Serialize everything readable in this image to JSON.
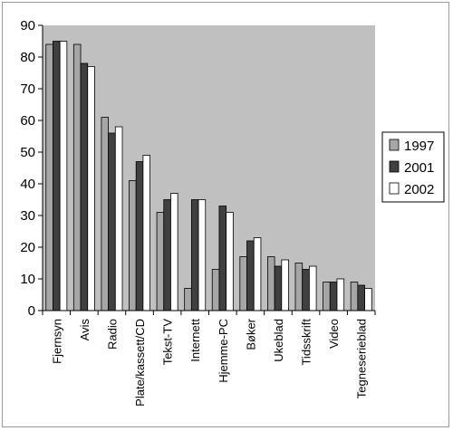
{
  "chart_data": {
    "type": "bar",
    "title": "",
    "xlabel": "",
    "ylabel": "",
    "ylim": [
      0,
      90
    ],
    "yticks": [
      0,
      10,
      20,
      30,
      40,
      50,
      60,
      70,
      80,
      90
    ],
    "grid": false,
    "legend_position": "right",
    "plot_background": "#c0c0c0",
    "categories": [
      "Fjernsyn",
      "Avis",
      "Radio",
      "Plate/kassett/CD",
      "Tekst-TV",
      "Internett",
      "Hjemme-PC",
      "Bøker",
      "Ukeblad",
      "Tidsskrift",
      "Video",
      "Tegneserieblad"
    ],
    "series": [
      {
        "name": "1997",
        "color": "#a6a6a6",
        "values": [
          84,
          84,
          61,
          41,
          31,
          7,
          13,
          17,
          17,
          15,
          9,
          9
        ]
      },
      {
        "name": "2001",
        "color": "#404040",
        "values": [
          85,
          78,
          56,
          47,
          35,
          35,
          33,
          22,
          14,
          13,
          9,
          8
        ]
      },
      {
        "name": "2002",
        "color": "#ffffff",
        "values": [
          85,
          77,
          58,
          49,
          37,
          35,
          31,
          23,
          16,
          14,
          10,
          7
        ]
      }
    ]
  }
}
